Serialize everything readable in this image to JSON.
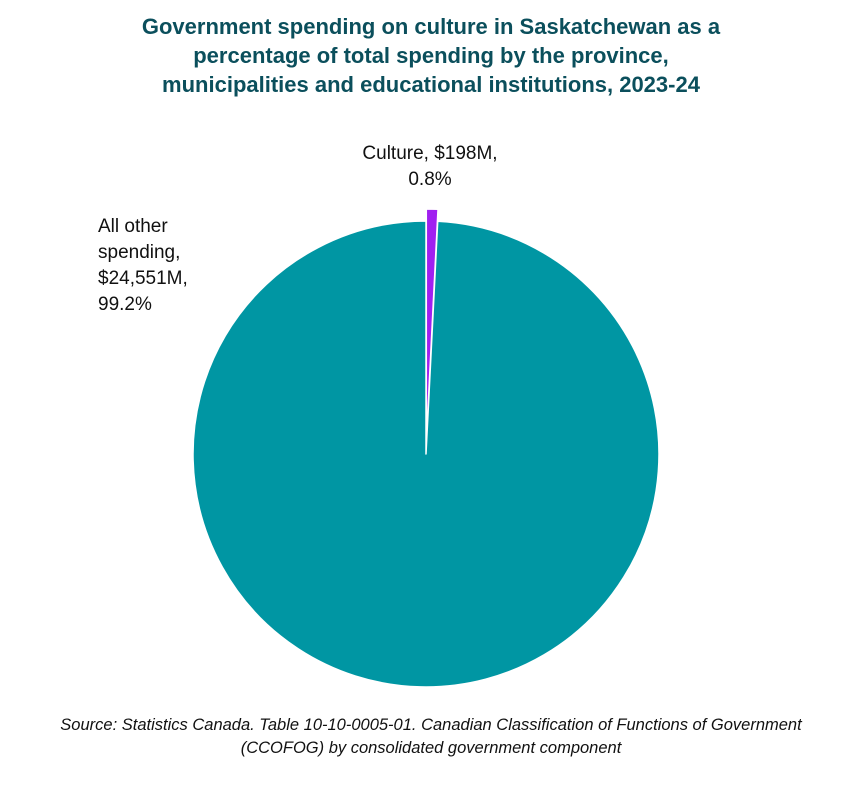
{
  "chart_data": {
    "type": "pie",
    "title": "Government spending on culture in Saskatchewan as a\npercentage of total spending by the province,\nmunicipalities and educational institutions, 2023-24",
    "slices": [
      {
        "category": "Culture",
        "value_millions": 198,
        "percent": 0.8,
        "label": "Culture, $198M,\n0.8%",
        "color": "#a020f0",
        "exploded": true
      },
      {
        "category": "All other spending",
        "value_millions": 24551,
        "percent": 99.2,
        "label": "All other\nspending,\n$24,551M,\n99.2%",
        "color": "#0096a3",
        "exploded": false
      }
    ],
    "start_angle": "12 o'clock",
    "direction": "clockwise",
    "legend": "none",
    "source": "Source: Statistics Canada. Table 10-10-0005-01. Canadian Classification of Functions of Government\n(CCOFOG) by consolidated government component"
  },
  "colors": {
    "title": "#0b4f5c",
    "slice_border": "#ffffff"
  }
}
